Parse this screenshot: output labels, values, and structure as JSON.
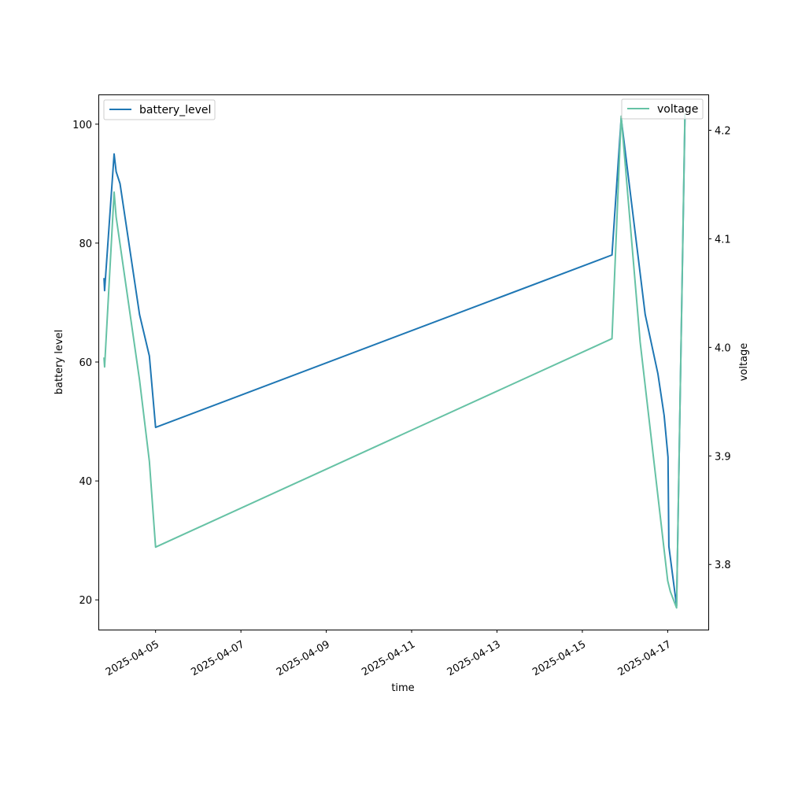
{
  "chart_data": {
    "type": "line",
    "xlabel": "time",
    "ylabel_left": "battery level",
    "ylabel_right": "voltage",
    "x_ticks": [
      "2025-04-05",
      "2025-04-07",
      "2025-04-09",
      "2025-04-11",
      "2025-04-13",
      "2025-04-15",
      "2025-04-17"
    ],
    "y_ticks_left": [
      20,
      40,
      60,
      80,
      100
    ],
    "y_ticks_right": [
      3.8,
      3.9,
      4.0,
      4.1,
      4.2
    ],
    "xlim": [
      "2025-04-03 15:50",
      "2025-04-17 22:50"
    ],
    "ylim_left": [
      15,
      105
    ],
    "ylim_right": [
      3.74,
      4.233
    ],
    "legend_left": {
      "label": "battery_level",
      "placement": "upper left"
    },
    "legend_right": {
      "label": "voltage",
      "placement": "upper right"
    },
    "series": [
      {
        "name": "battery_level",
        "axis": "left",
        "color": "#1f77b4",
        "points": [
          {
            "x": "2025-04-03 19:00",
            "y": 74
          },
          {
            "x": "2025-04-03 19:20",
            "y": 72
          },
          {
            "x": "2025-04-04 00:40",
            "y": 95
          },
          {
            "x": "2025-04-04 01:50",
            "y": 92
          },
          {
            "x": "2025-04-04 04:00",
            "y": 90
          },
          {
            "x": "2025-04-04 15:00",
            "y": 68
          },
          {
            "x": "2025-04-04 20:30",
            "y": 61
          },
          {
            "x": "2025-04-05 00:00",
            "y": 49
          },
          {
            "x": "2025-04-15 16:40",
            "y": 78
          },
          {
            "x": "2025-04-15 21:50",
            "y": 101
          },
          {
            "x": "2025-04-16 11:20",
            "y": 68
          },
          {
            "x": "2025-04-16 18:30",
            "y": 58
          },
          {
            "x": "2025-04-16 22:00",
            "y": 51
          },
          {
            "x": "2025-04-17 00:10",
            "y": 44
          },
          {
            "x": "2025-04-17 00:40",
            "y": 29
          },
          {
            "x": "2025-04-17 05:00",
            "y": 19
          },
          {
            "x": "2025-04-17 09:40",
            "y": 101
          }
        ]
      },
      {
        "name": "voltage",
        "axis": "right",
        "color": "#66c2a5",
        "points": [
          {
            "x": "2025-04-03 19:00",
            "y": 3.99
          },
          {
            "x": "2025-04-03 19:20",
            "y": 3.982
          },
          {
            "x": "2025-04-04 00:40",
            "y": 4.143
          },
          {
            "x": "2025-04-04 01:50",
            "y": 4.12
          },
          {
            "x": "2025-04-04 15:00",
            "y": 3.97
          },
          {
            "x": "2025-04-04 20:30",
            "y": 3.895
          },
          {
            "x": "2025-04-05 00:00",
            "y": 3.816
          },
          {
            "x": "2025-04-15 16:40",
            "y": 4.008
          },
          {
            "x": "2025-04-15 21:50",
            "y": 4.213
          },
          {
            "x": "2025-04-16 08:30",
            "y": 4.005
          },
          {
            "x": "2025-04-17 00:00",
            "y": 3.785
          },
          {
            "x": "2025-04-17 01:30",
            "y": 3.775
          },
          {
            "x": "2025-04-17 05:00",
            "y": 3.76
          },
          {
            "x": "2025-04-17 09:40",
            "y": 4.215
          }
        ]
      }
    ]
  }
}
